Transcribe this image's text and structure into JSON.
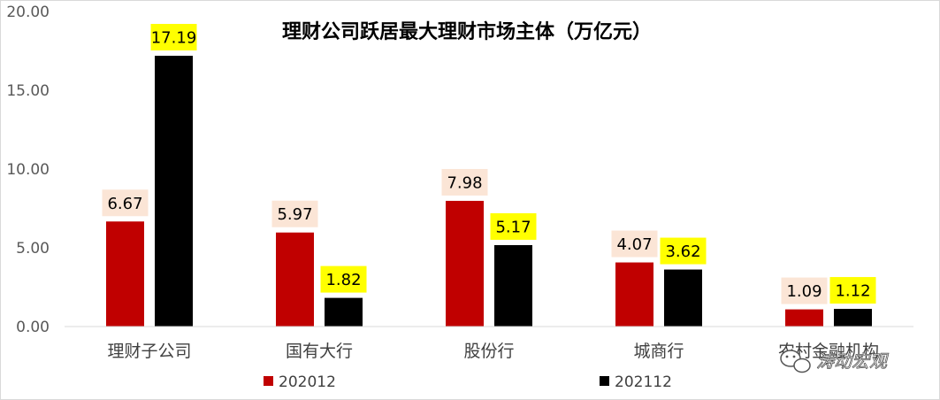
{
  "chart_data": {
    "type": "bar",
    "title": "理财公司跃居最大理财市场主体（万亿元）",
    "categories": [
      "理财子公司",
      "国有大行",
      "股份行",
      "城商行",
      "农村金融机构"
    ],
    "series": [
      {
        "name": "202012",
        "values": [
          6.67,
          5.97,
          7.98,
          4.07,
          1.09
        ],
        "color": "#c00000",
        "label_bg": "#fbe5d6"
      },
      {
        "name": "202112",
        "values": [
          17.19,
          1.82,
          5.17,
          3.62,
          1.12
        ],
        "color": "#000000",
        "label_bg": "#ffff00"
      }
    ],
    "ylim": [
      0,
      20
    ],
    "yticks": [
      "0.00",
      "5.00",
      "10.00",
      "15.00",
      "20.00"
    ],
    "xlabel": "",
    "ylabel": "",
    "grid": false,
    "legend": "bottom"
  },
  "watermark": {
    "text": "涛动宏观",
    "icon": "wechat-icon"
  }
}
